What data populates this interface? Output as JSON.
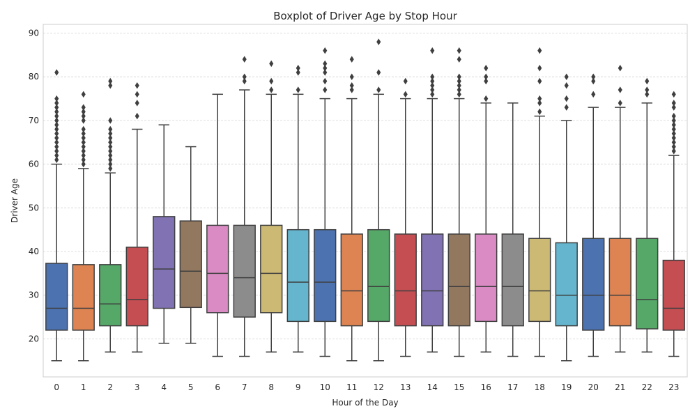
{
  "chart_data": {
    "type": "boxplot",
    "title": "Boxplot of Driver Age by Stop Hour",
    "xlabel": "Hour of the Day",
    "ylabel": "Driver Age",
    "ylim": [
      11.3,
      92
    ],
    "yticks": [
      20,
      30,
      40,
      50,
      60,
      70,
      80,
      90
    ],
    "grid": "horizontal dashed",
    "categories": [
      "0",
      "1",
      "2",
      "3",
      "4",
      "5",
      "6",
      "7",
      "8",
      "9",
      "10",
      "11",
      "12",
      "13",
      "14",
      "15",
      "16",
      "17",
      "18",
      "19",
      "20",
      "21",
      "22",
      "23"
    ],
    "boxes": [
      {
        "hour": "0",
        "min": 15,
        "q1": 22,
        "median": 27,
        "q3": 37.3,
        "max": 60,
        "outliers": [
          61,
          62,
          63,
          64,
          65,
          66,
          67,
          68,
          69,
          70,
          71,
          72,
          73,
          74,
          75,
          81
        ],
        "color": "#4c72b0"
      },
      {
        "hour": "1",
        "min": 15,
        "q1": 22,
        "median": 27,
        "q3": 37,
        "max": 59,
        "outliers": [
          60,
          61,
          62,
          63,
          64,
          65,
          66,
          67,
          68,
          70,
          71,
          72,
          73,
          76
        ],
        "color": "#dd8452"
      },
      {
        "hour": "2",
        "min": 17,
        "q1": 23,
        "median": 28,
        "q3": 37,
        "max": 58,
        "outliers": [
          59,
          60,
          61,
          62,
          63,
          64,
          65,
          66,
          67,
          68,
          70,
          78,
          79
        ],
        "color": "#55a868"
      },
      {
        "hour": "3",
        "min": 17,
        "q1": 23,
        "median": 29,
        "q3": 41,
        "max": 68,
        "outliers": [
          71,
          74,
          76,
          78
        ],
        "color": "#c44e52"
      },
      {
        "hour": "4",
        "min": 19,
        "q1": 27,
        "median": 36,
        "q3": 48,
        "max": 69,
        "outliers": [],
        "color": "#8172b3"
      },
      {
        "hour": "5",
        "min": 19,
        "q1": 27.2,
        "median": 35.5,
        "q3": 47,
        "max": 64,
        "outliers": [],
        "color": "#937860"
      },
      {
        "hour": "6",
        "min": 16,
        "q1": 26,
        "median": 35,
        "q3": 46,
        "max": 76,
        "outliers": [],
        "color": "#da8bc3"
      },
      {
        "hour": "7",
        "min": 16,
        "q1": 25,
        "median": 34,
        "q3": 46,
        "max": 77,
        "outliers": [
          79,
          80,
          84
        ],
        "color": "#8c8c8c"
      },
      {
        "hour": "8",
        "min": 17,
        "q1": 26,
        "median": 35,
        "q3": 46,
        "max": 76,
        "outliers": [
          77,
          79,
          83
        ],
        "color": "#ccb974"
      },
      {
        "hour": "9",
        "min": 17,
        "q1": 24,
        "median": 33,
        "q3": 45,
        "max": 76,
        "outliers": [
          77,
          81,
          82
        ],
        "color": "#64b5cd"
      },
      {
        "hour": "10",
        "min": 16,
        "q1": 24,
        "median": 33,
        "q3": 45,
        "max": 75,
        "outliers": [
          77,
          79,
          81,
          82,
          83,
          86
        ],
        "color": "#4c72b0"
      },
      {
        "hour": "11",
        "min": 15,
        "q1": 23,
        "median": 31,
        "q3": 44,
        "max": 75,
        "outliers": [
          77,
          78,
          80,
          84
        ],
        "color": "#dd8452"
      },
      {
        "hour": "12",
        "min": 15,
        "q1": 24,
        "median": 32,
        "q3": 45,
        "max": 76,
        "outliers": [
          77,
          81,
          88
        ],
        "color": "#55a868"
      },
      {
        "hour": "13",
        "min": 16,
        "q1": 23,
        "median": 31,
        "q3": 44,
        "max": 75,
        "outliers": [
          76,
          79
        ],
        "color": "#c44e52"
      },
      {
        "hour": "14",
        "min": 17,
        "q1": 23,
        "median": 31,
        "q3": 44,
        "max": 75,
        "outliers": [
          76,
          77,
          78,
          79,
          80,
          86
        ],
        "color": "#8172b3"
      },
      {
        "hour": "15",
        "min": 16,
        "q1": 23,
        "median": 32,
        "q3": 44,
        "max": 75,
        "outliers": [
          76,
          77,
          78,
          79,
          80,
          84,
          86
        ],
        "color": "#937860"
      },
      {
        "hour": "16",
        "min": 17,
        "q1": 24,
        "median": 32,
        "q3": 44,
        "max": 74,
        "outliers": [
          75,
          79,
          80,
          82
        ],
        "color": "#da8bc3"
      },
      {
        "hour": "17",
        "min": 16,
        "q1": 23,
        "median": 32,
        "q3": 44,
        "max": 74,
        "outliers": [],
        "color": "#8c8c8c"
      },
      {
        "hour": "18",
        "min": 16,
        "q1": 24,
        "median": 31,
        "q3": 43,
        "max": 71,
        "outliers": [
          72,
          74,
          75,
          79,
          82,
          86
        ],
        "color": "#ccb974"
      },
      {
        "hour": "19",
        "min": 15,
        "q1": 23,
        "median": 30,
        "q3": 42,
        "max": 70,
        "outliers": [
          73,
          75,
          78,
          80
        ],
        "color": "#64b5cd"
      },
      {
        "hour": "20",
        "min": 16,
        "q1": 22,
        "median": 30,
        "q3": 43,
        "max": 73,
        "outliers": [
          76,
          79,
          80
        ],
        "color": "#4c72b0"
      },
      {
        "hour": "21",
        "min": 17,
        "q1": 23,
        "median": 30,
        "q3": 43,
        "max": 73,
        "outliers": [
          74,
          77,
          82
        ],
        "color": "#dd8452"
      },
      {
        "hour": "22",
        "min": 17,
        "q1": 22.3,
        "median": 29,
        "q3": 43,
        "max": 74,
        "outliers": [
          76,
          77,
          79
        ],
        "color": "#55a868"
      },
      {
        "hour": "23",
        "min": 16,
        "q1": 22,
        "median": 27,
        "q3": 38,
        "max": 62,
        "outliers": [
          63,
          64,
          65,
          66,
          67,
          68,
          69,
          70,
          71,
          73,
          74,
          76
        ],
        "color": "#c44e52"
      }
    ]
  }
}
